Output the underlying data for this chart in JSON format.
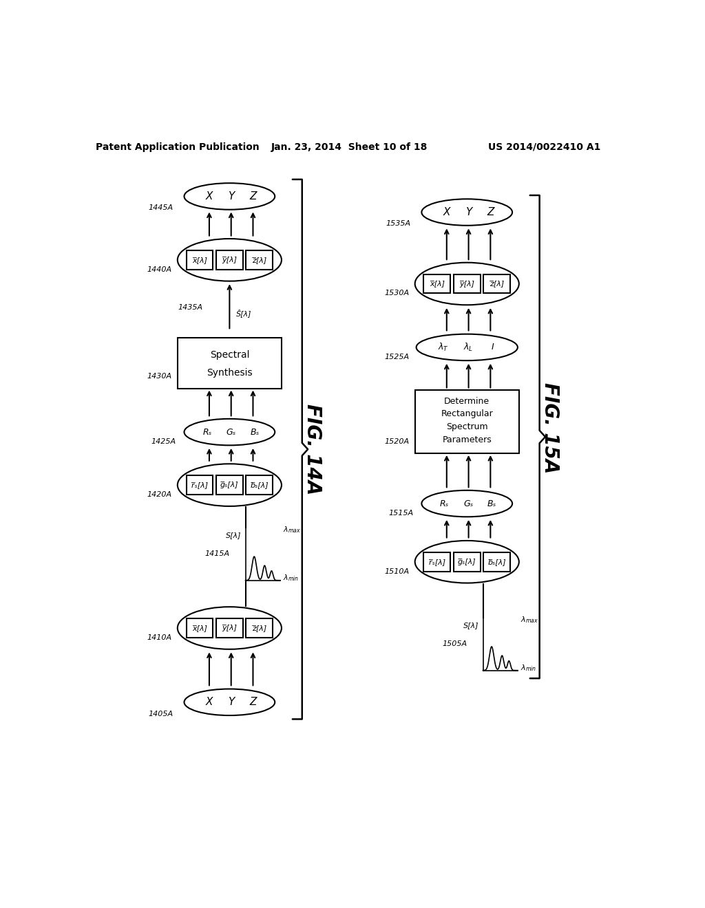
{
  "title_left": "Patent Application Publication",
  "title_mid": "Jan. 23, 2014  Sheet 10 of 18",
  "title_right": "US 2014/0022410 A1",
  "fig14_label": "FIG. 14A",
  "fig15_label": "FIG. 15A",
  "background": "#ffffff"
}
